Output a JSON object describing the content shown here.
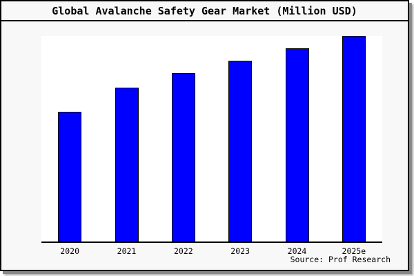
{
  "title": "Global Avalanche Safety Gear Market (Million USD)",
  "source": "Source: Prof Research",
  "colors": {
    "background": "#f8f8f8",
    "plot_background": "#ffffff",
    "bar_fill": "#0000ff",
    "bar_edge": "#000000",
    "axis": "#000000",
    "text": "#000000"
  },
  "chart_data": {
    "type": "bar",
    "title": "Global Avalanche Safety Gear Market (Million USD)",
    "categories": [
      "2020",
      "2021",
      "2022",
      "2023",
      "2024",
      "2025e"
    ],
    "values": [
      63,
      75,
      82,
      88,
      94,
      100
    ],
    "xlabel": "",
    "ylabel": "",
    "ylim": [
      0,
      100
    ],
    "y_axis_visible": false,
    "gridlines": false,
    "legend": false,
    "bar_color": "#0000ff",
    "bar_edge_color": "#000000",
    "annotations": [
      "Source: Prof Research"
    ]
  }
}
